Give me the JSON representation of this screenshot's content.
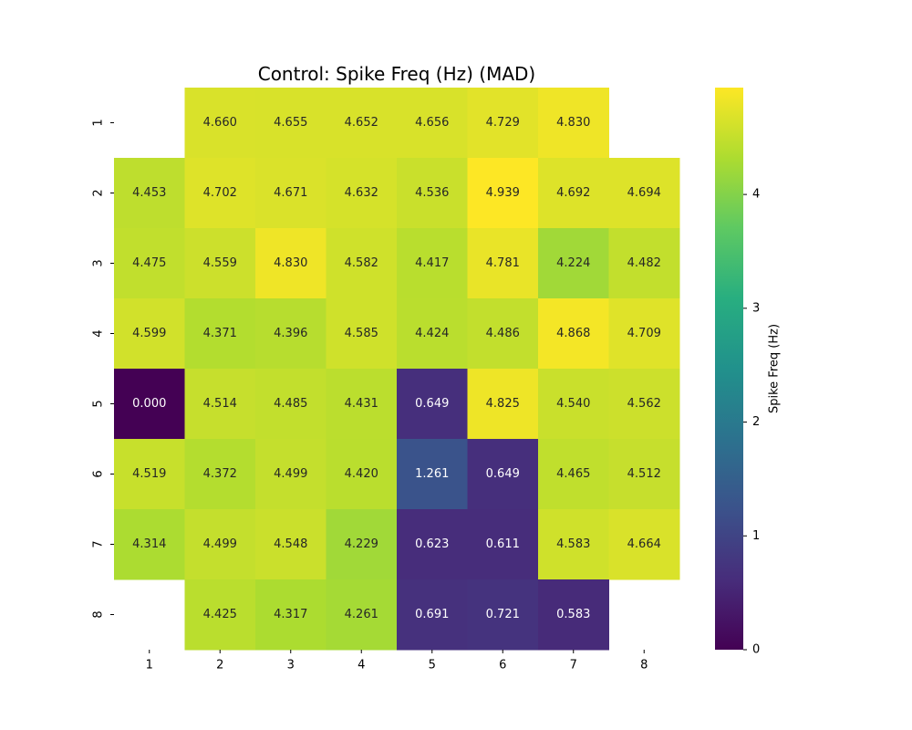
{
  "chart_data": {
    "type": "heatmap",
    "title": "Control: Spike Freq (Hz) (MAD)",
    "x_ticks": [
      "1",
      "2",
      "3",
      "4",
      "5",
      "6",
      "7",
      "8"
    ],
    "y_ticks": [
      "1",
      "2",
      "3",
      "4",
      "5",
      "6",
      "7",
      "8"
    ],
    "values": [
      [
        null,
        4.66,
        4.655,
        4.652,
        4.656,
        4.729,
        4.83,
        null
      ],
      [
        4.453,
        4.702,
        4.671,
        4.632,
        4.536,
        4.939,
        4.692,
        4.694
      ],
      [
        4.475,
        4.559,
        4.83,
        4.582,
        4.417,
        4.781,
        4.224,
        4.482
      ],
      [
        4.599,
        4.371,
        4.396,
        4.585,
        4.424,
        4.486,
        4.868,
        4.709
      ],
      [
        0.0,
        4.514,
        4.485,
        4.431,
        0.649,
        4.825,
        4.54,
        4.562
      ],
      [
        4.519,
        4.372,
        4.499,
        4.42,
        1.261,
        0.649,
        4.465,
        4.512
      ],
      [
        4.314,
        4.499,
        4.548,
        4.229,
        0.623,
        0.611,
        4.583,
        4.664
      ],
      [
        null,
        4.425,
        4.317,
        4.261,
        0.691,
        0.721,
        0.583,
        null
      ]
    ],
    "value_labels": [
      [
        "",
        "4.660",
        "4.655",
        "4.652",
        "4.656",
        "4.729",
        "4.830",
        ""
      ],
      [
        "4.453",
        "4.702",
        "4.671",
        "4.632",
        "4.536",
        "4.939",
        "4.692",
        "4.694"
      ],
      [
        "4.475",
        "4.559",
        "4.830",
        "4.582",
        "4.417",
        "4.781",
        "4.224",
        "4.482"
      ],
      [
        "4.599",
        "4.371",
        "4.396",
        "4.585",
        "4.424",
        "4.486",
        "4.868",
        "4.709"
      ],
      [
        "0.000",
        "4.514",
        "4.485",
        "4.431",
        "0.649",
        "4.825",
        "4.540",
        "4.562"
      ],
      [
        "4.519",
        "4.372",
        "4.499",
        "4.420",
        "1.261",
        "0.649",
        "4.465",
        "4.512"
      ],
      [
        "4.314",
        "4.499",
        "4.548",
        "4.229",
        "0.623",
        "0.611",
        "4.583",
        "4.664"
      ],
      [
        "",
        "4.425",
        "4.317",
        "4.261",
        "0.691",
        "0.721",
        "0.583",
        ""
      ]
    ],
    "colorbar": {
      "label": "Spike Freq (Hz)",
      "vmin": 0,
      "vmax": 4.939,
      "ticks": [
        "0",
        "1",
        "2",
        "3",
        "4"
      ],
      "colormap": "viridis"
    },
    "grid": false,
    "legend": "colorbar-right"
  }
}
